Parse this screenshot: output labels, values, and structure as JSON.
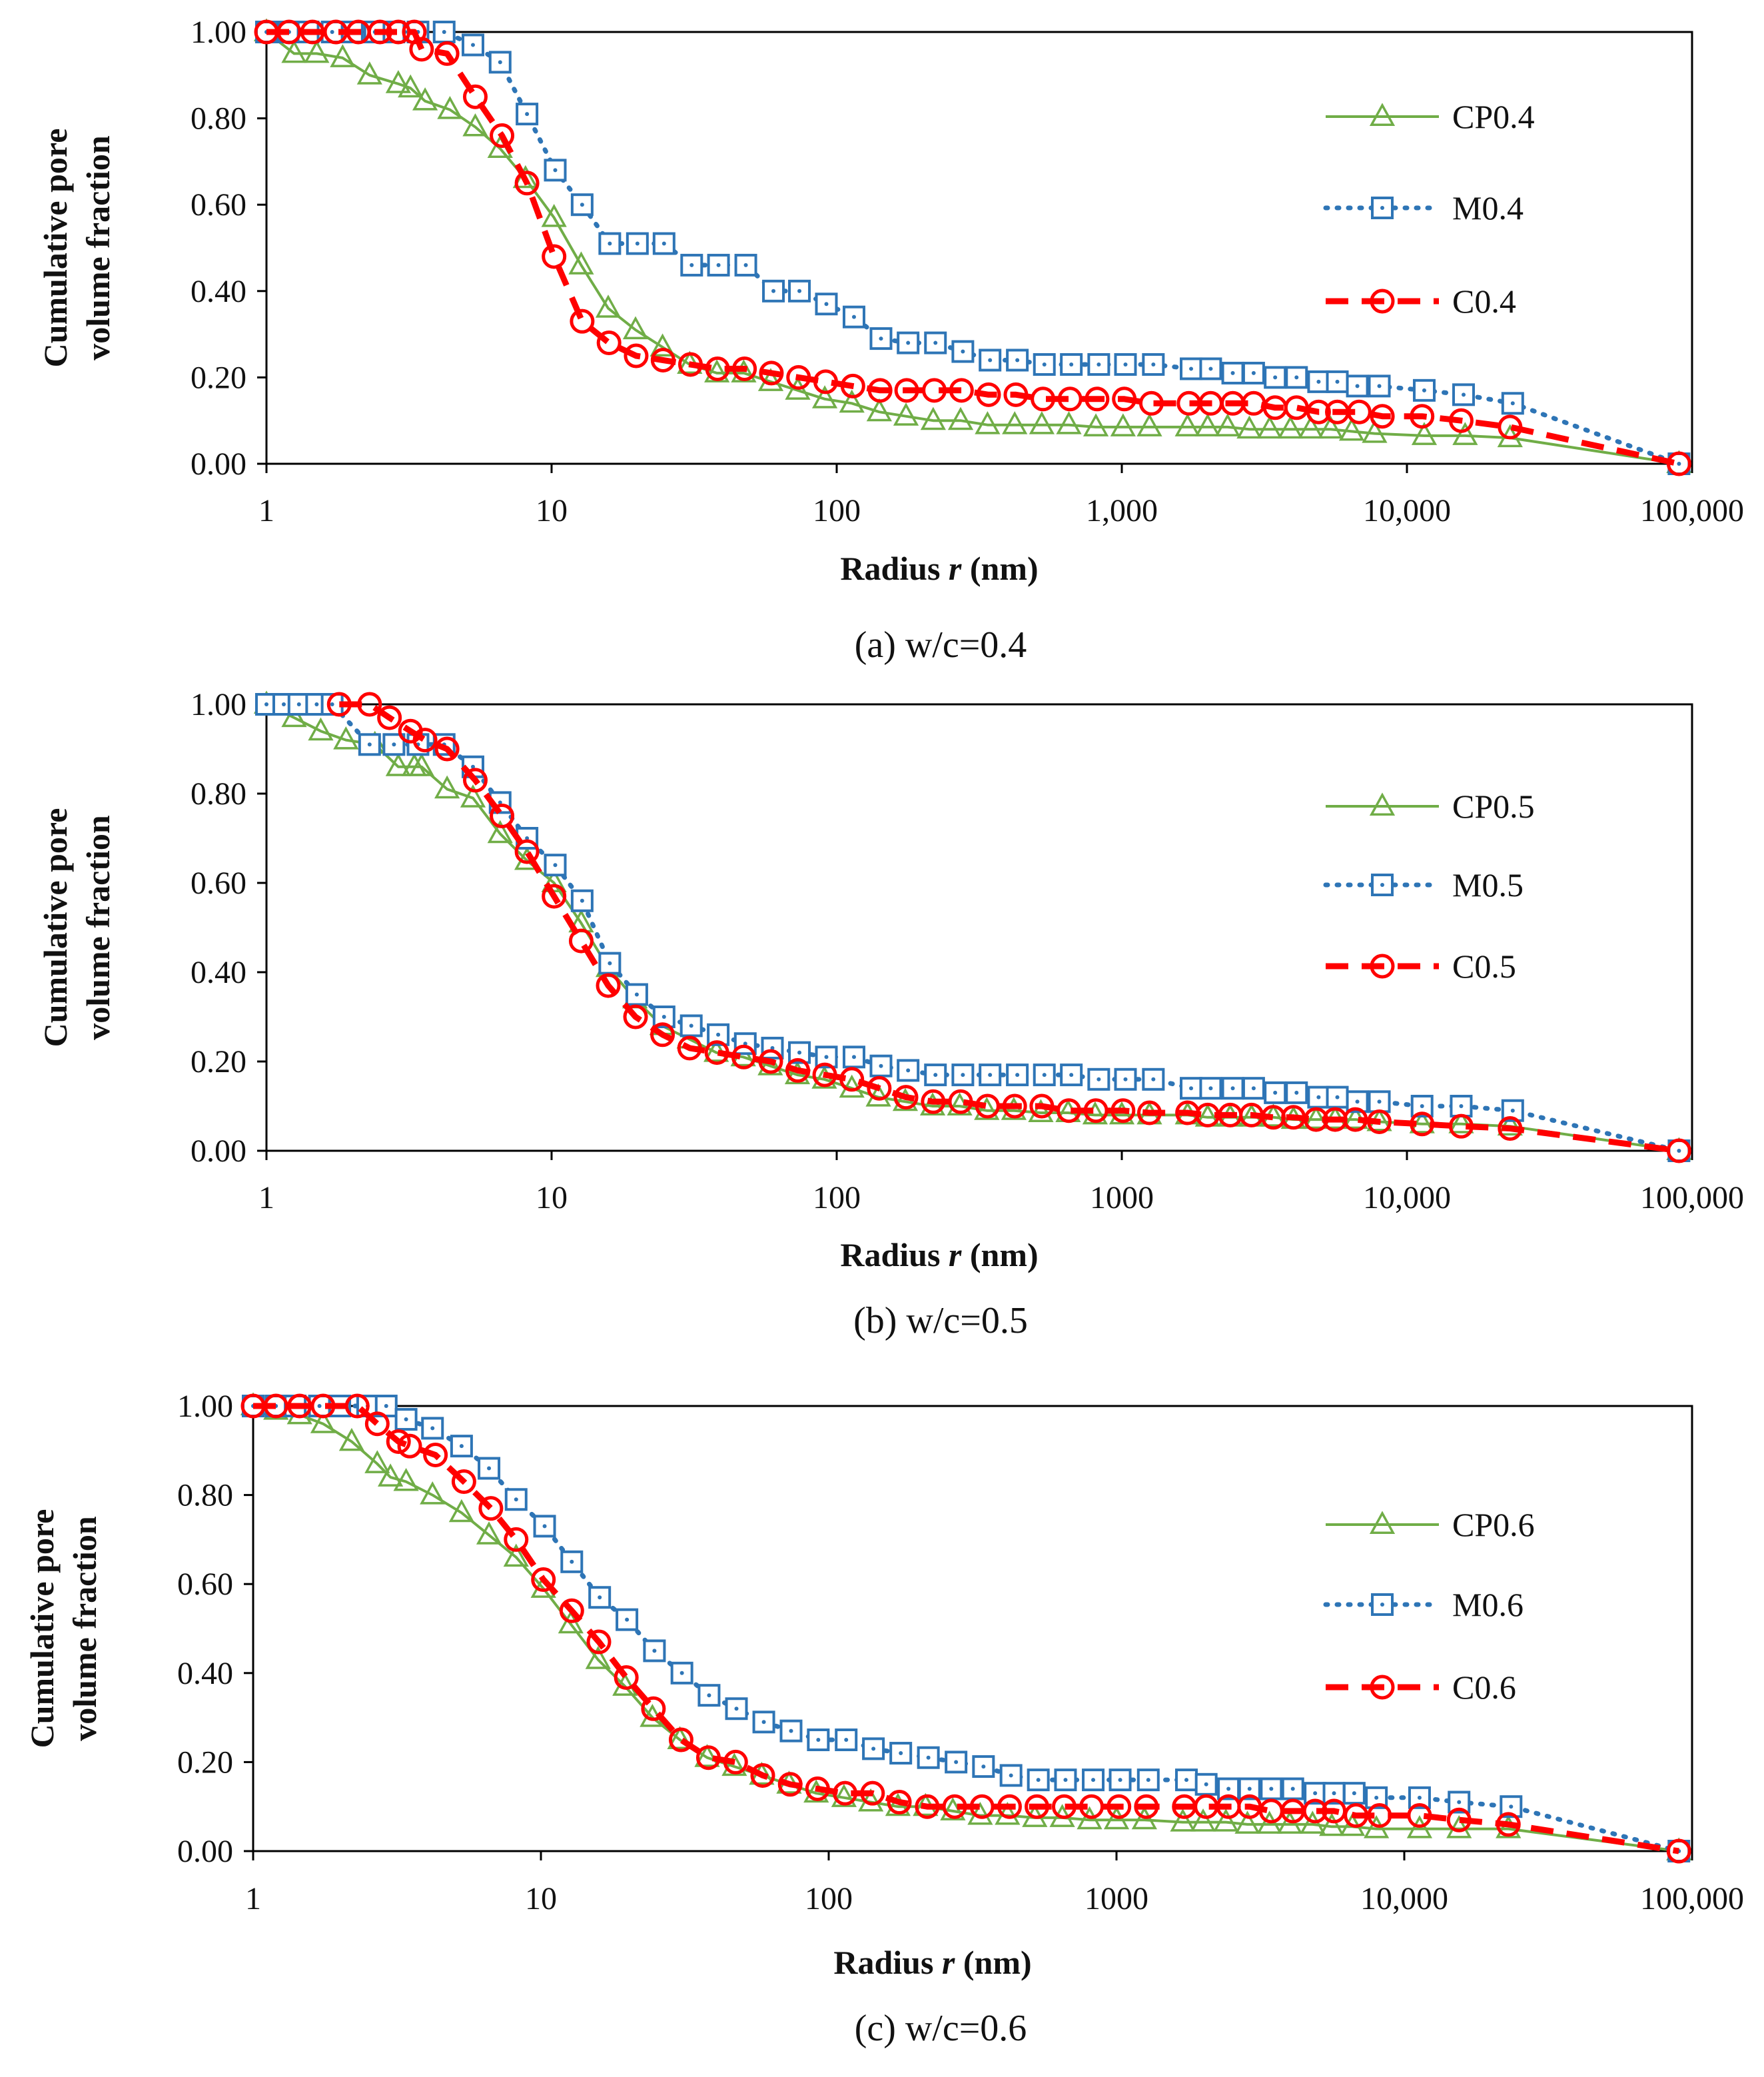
{
  "chart_data": [
    {
      "type": "line",
      "caption": "(a) w/c=0.4",
      "xlabel": "Radius",
      "xlabel_var": "r",
      "xlabel_unit": "(nm)",
      "ylabel_line1": "Cumulative pore",
      "ylabel_line2": "volume fraction",
      "xscale": "log",
      "xlim": [
        1,
        100000
      ],
      "ylim": [
        0,
        1
      ],
      "yticks": [
        "0.00",
        "0.20",
        "0.40",
        "0.60",
        "0.80",
        "1.00"
      ],
      "xticks": [
        "1",
        "10",
        "100",
        "1,000",
        "10,000",
        "100,000"
      ],
      "legend_position": "right",
      "series": [
        {
          "name": "CP0.4",
          "style": "CP",
          "x": [
            1.0,
            1.25,
            1.5,
            1.85,
            2.3,
            2.9,
            3.2,
            3.6,
            4.4,
            5.4,
            6.6,
            8.1,
            10.2,
            12.7,
            15.8,
            19.7,
            24.5,
            30.5,
            38.0,
            47.2,
            58.7,
            73.0,
            90.8,
            113,
            141,
            175,
            218,
            272,
            338,
            421,
            524,
            652,
            811,
            1010,
            1250,
            1700,
            2000,
            2350,
            2800,
            3300,
            3900,
            4600,
            5400,
            6400,
            7700,
            11500,
            16000,
            23000,
            90000
          ],
          "y": [
            1.0,
            0.95,
            0.95,
            0.94,
            0.9,
            0.88,
            0.87,
            0.84,
            0.82,
            0.78,
            0.73,
            0.66,
            0.57,
            0.46,
            0.36,
            0.31,
            0.27,
            0.23,
            0.21,
            0.21,
            0.19,
            0.17,
            0.15,
            0.14,
            0.12,
            0.11,
            0.1,
            0.1,
            0.09,
            0.09,
            0.09,
            0.09,
            0.085,
            0.085,
            0.085,
            0.085,
            0.085,
            0.085,
            0.08,
            0.08,
            0.08,
            0.08,
            0.08,
            0.075,
            0.07,
            0.065,
            0.065,
            0.06,
            0.0
          ]
        },
        {
          "name": "M0.4",
          "style": "M",
          "x": [
            1.0,
            1.2,
            1.4,
            1.7,
            2.0,
            2.4,
            2.8,
            3.4,
            4.2,
            5.3,
            6.6,
            8.2,
            10.3,
            12.8,
            16.0,
            20.0,
            24.8,
            31.0,
            38.5,
            48.0,
            60.0,
            74.0,
            92.0,
            115,
            143,
            178,
            222,
            277,
            345,
            430,
            535,
            665,
            830,
            1030,
            1290,
            1750,
            2050,
            2450,
            2900,
            3450,
            4100,
            4900,
            5700,
            6700,
            8000,
            11500,
            15800,
            23500,
            90000
          ],
          "y": [
            1.0,
            1.0,
            1.0,
            1.0,
            1.0,
            1.0,
            1.0,
            1.0,
            1.0,
            0.97,
            0.93,
            0.81,
            0.68,
            0.6,
            0.51,
            0.51,
            0.51,
            0.46,
            0.46,
            0.46,
            0.4,
            0.4,
            0.37,
            0.34,
            0.29,
            0.28,
            0.28,
            0.26,
            0.24,
            0.24,
            0.23,
            0.23,
            0.23,
            0.23,
            0.23,
            0.22,
            0.22,
            0.21,
            0.21,
            0.2,
            0.2,
            0.19,
            0.19,
            0.18,
            0.18,
            0.17,
            0.16,
            0.14,
            0.0
          ]
        },
        {
          "name": "C0.4",
          "style": "C",
          "x": [
            1.0,
            1.2,
            1.45,
            1.75,
            2.1,
            2.5,
            2.9,
            3.3,
            3.5,
            4.3,
            5.4,
            6.7,
            8.2,
            10.2,
            12.8,
            15.9,
            19.8,
            24.6,
            30.7,
            38.2,
            47.5,
            59.0,
            73.5,
            91.5,
            114,
            142,
            176,
            220,
            274,
            341,
            425,
            529,
            658,
            819,
            1020,
            1270,
            1720,
            2050,
            2450,
            2900,
            3450,
            4100,
            4900,
            5700,
            6800,
            8200,
            11300,
            15500,
            23000,
            90000
          ],
          "y": [
            1.0,
            1.0,
            1.0,
            1.0,
            1.0,
            1.0,
            1.0,
            1.0,
            0.96,
            0.95,
            0.85,
            0.76,
            0.65,
            0.48,
            0.33,
            0.28,
            0.25,
            0.24,
            0.23,
            0.22,
            0.22,
            0.21,
            0.2,
            0.19,
            0.18,
            0.17,
            0.17,
            0.17,
            0.17,
            0.16,
            0.16,
            0.15,
            0.15,
            0.15,
            0.15,
            0.14,
            0.14,
            0.14,
            0.14,
            0.14,
            0.13,
            0.13,
            0.12,
            0.12,
            0.12,
            0.11,
            0.11,
            0.1,
            0.085,
            0.0
          ]
        }
      ]
    },
    {
      "type": "line",
      "caption": "(b) w/c=0.5",
      "xlabel": "Radius",
      "xlabel_var": "r",
      "xlabel_unit": "(nm)",
      "ylabel_line1": "Cumulative pore",
      "ylabel_line2": "volume fraction",
      "xscale": "log",
      "xlim": [
        1,
        100000
      ],
      "ylim": [
        0,
        1
      ],
      "yticks": [
        "0.00",
        "0.20",
        "0.40",
        "0.60",
        "0.80",
        "1.00"
      ],
      "xticks": [
        "1",
        "10",
        "100",
        "1000",
        "10,000",
        "100,000"
      ],
      "legend_position": "right",
      "series": [
        {
          "name": "CP0.5",
          "style": "CP",
          "x": [
            1.0,
            1.25,
            1.55,
            1.9,
            2.4,
            2.9,
            3.3,
            3.5,
            4.3,
            5.3,
            6.6,
            8.2,
            10.2,
            12.7,
            15.8,
            19.6,
            24.4,
            30.4,
            37.8,
            47.0,
            58.5,
            72.8,
            90.5,
            113,
            140,
            174,
            217,
            270,
            336,
            418,
            520,
            648,
            806,
            1000,
            1250,
            1700,
            2000,
            2400,
            2850,
            3400,
            4000,
            4800,
            5600,
            6600,
            8000,
            11300,
            15500,
            23000,
            90000
          ],
          "y": [
            1.0,
            0.97,
            0.94,
            0.92,
            0.91,
            0.86,
            0.86,
            0.86,
            0.81,
            0.79,
            0.71,
            0.65,
            0.6,
            0.51,
            0.41,
            0.34,
            0.28,
            0.25,
            0.22,
            0.21,
            0.19,
            0.17,
            0.16,
            0.14,
            0.12,
            0.11,
            0.1,
            0.1,
            0.09,
            0.09,
            0.085,
            0.085,
            0.08,
            0.08,
            0.08,
            0.08,
            0.075,
            0.075,
            0.075,
            0.075,
            0.07,
            0.07,
            0.07,
            0.07,
            0.065,
            0.06,
            0.06,
            0.055,
            0.0
          ]
        },
        {
          "name": "M0.5",
          "style": "M",
          "x": [
            1.0,
            1.15,
            1.3,
            1.5,
            1.7,
            2.3,
            2.8,
            3.4,
            4.2,
            5.3,
            6.6,
            8.2,
            10.3,
            12.8,
            16.0,
            19.9,
            24.8,
            30.9,
            38.4,
            47.8,
            59.5,
            74.0,
            92.0,
            115,
            143,
            178,
            222,
            277,
            345,
            430,
            535,
            665,
            830,
            1030,
            1290,
            1750,
            2050,
            2450,
            2900,
            3450,
            4100,
            4900,
            5700,
            6700,
            8000,
            11300,
            15500,
            23500,
            90000
          ],
          "y": [
            1.0,
            1.0,
            1.0,
            1.0,
            1.0,
            0.91,
            0.91,
            0.91,
            0.91,
            0.86,
            0.78,
            0.7,
            0.64,
            0.56,
            0.42,
            0.35,
            0.3,
            0.28,
            0.26,
            0.24,
            0.23,
            0.22,
            0.21,
            0.21,
            0.19,
            0.18,
            0.17,
            0.17,
            0.17,
            0.17,
            0.17,
            0.17,
            0.16,
            0.16,
            0.16,
            0.14,
            0.14,
            0.14,
            0.14,
            0.13,
            0.13,
            0.12,
            0.12,
            0.11,
            0.11,
            0.1,
            0.1,
            0.09,
            0.0
          ]
        },
        {
          "name": "C0.5",
          "style": "C",
          "x": [
            1.8,
            2.3,
            2.7,
            3.2,
            3.6,
            4.3,
            5.4,
            6.7,
            8.2,
            10.2,
            12.7,
            15.8,
            19.7,
            24.5,
            30.5,
            38.0,
            47.2,
            58.7,
            73.0,
            90.8,
            113,
            141,
            175,
            218,
            272,
            338,
            421,
            524,
            652,
            811,
            1010,
            1250,
            1700,
            2000,
            2400,
            2850,
            3400,
            4000,
            4800,
            5600,
            6600,
            8000,
            11300,
            15500,
            23000,
            90000
          ],
          "y": [
            1.0,
            1.0,
            0.97,
            0.94,
            0.92,
            0.9,
            0.83,
            0.75,
            0.67,
            0.57,
            0.47,
            0.37,
            0.3,
            0.26,
            0.23,
            0.22,
            0.21,
            0.2,
            0.18,
            0.17,
            0.16,
            0.14,
            0.12,
            0.11,
            0.11,
            0.1,
            0.1,
            0.1,
            0.09,
            0.09,
            0.09,
            0.085,
            0.085,
            0.08,
            0.08,
            0.08,
            0.075,
            0.075,
            0.07,
            0.07,
            0.07,
            0.065,
            0.06,
            0.055,
            0.05,
            0.0
          ]
        }
      ]
    },
    {
      "type": "line",
      "caption": "(c) w/c=0.6",
      "xlabel": "Radius",
      "xlabel_var": "r",
      "xlabel_unit": "(nm)",
      "ylabel_line1": "Cumulative pore",
      "ylabel_line2": "volume fraction",
      "xscale": "log",
      "xlim": [
        1,
        100000
      ],
      "ylim": [
        0,
        1
      ],
      "yticks": [
        "0.00",
        "0.20",
        "0.40",
        "0.60",
        "0.80",
        "1.00"
      ],
      "xticks": [
        "1",
        "10",
        "100",
        "1000",
        "10,000",
        "100,000"
      ],
      "legend_position": "right",
      "series": [
        {
          "name": "CP0.6",
          "style": "CP",
          "x": [
            1.0,
            1.2,
            1.45,
            1.75,
            2.2,
            2.7,
            3.0,
            3.4,
            4.2,
            5.3,
            6.6,
            8.2,
            10.2,
            12.7,
            15.8,
            19.6,
            24.4,
            30.4,
            37.8,
            47.0,
            58.5,
            72.8,
            90.5,
            113,
            140,
            174,
            217,
            270,
            336,
            418,
            520,
            648,
            806,
            1000,
            1250,
            1700,
            2000,
            2400,
            2850,
            3400,
            4000,
            4800,
            5600,
            6600,
            8000,
            11300,
            15500,
            23000,
            90000
          ],
          "y": [
            1.0,
            0.99,
            0.98,
            0.96,
            0.92,
            0.87,
            0.84,
            0.83,
            0.8,
            0.76,
            0.71,
            0.66,
            0.59,
            0.51,
            0.43,
            0.37,
            0.3,
            0.25,
            0.21,
            0.19,
            0.17,
            0.15,
            0.13,
            0.12,
            0.11,
            0.1,
            0.1,
            0.09,
            0.08,
            0.08,
            0.075,
            0.075,
            0.07,
            0.07,
            0.07,
            0.065,
            0.065,
            0.065,
            0.06,
            0.06,
            0.06,
            0.06,
            0.055,
            0.055,
            0.05,
            0.05,
            0.05,
            0.05,
            0.0
          ]
        },
        {
          "name": "M0.6",
          "style": "M",
          "x": [
            1.0,
            1.2,
            1.4,
            1.7,
            2.0,
            2.5,
            2.9,
            3.4,
            4.2,
            5.3,
            6.6,
            8.2,
            10.3,
            12.8,
            16.0,
            19.9,
            24.8,
            30.9,
            38.4,
            47.8,
            59.5,
            74.0,
            92.0,
            115,
            143,
            178,
            222,
            277,
            345,
            430,
            535,
            665,
            830,
            1030,
            1290,
            1750,
            2050,
            2450,
            2900,
            3450,
            4100,
            4900,
            5700,
            6700,
            8000,
            11300,
            15500,
            23500,
            90000
          ],
          "y": [
            1.0,
            1.0,
            1.0,
            1.0,
            1.0,
            1.0,
            1.0,
            0.97,
            0.95,
            0.91,
            0.86,
            0.79,
            0.73,
            0.65,
            0.57,
            0.52,
            0.45,
            0.4,
            0.35,
            0.32,
            0.29,
            0.27,
            0.25,
            0.25,
            0.23,
            0.22,
            0.21,
            0.2,
            0.19,
            0.17,
            0.16,
            0.16,
            0.16,
            0.16,
            0.16,
            0.16,
            0.15,
            0.14,
            0.14,
            0.14,
            0.14,
            0.13,
            0.13,
            0.13,
            0.12,
            0.12,
            0.11,
            0.1,
            0.0
          ]
        },
        {
          "name": "C0.6",
          "style": "C",
          "x": [
            1.0,
            1.2,
            1.45,
            1.75,
            2.3,
            2.7,
            3.2,
            3.5,
            4.3,
            5.4,
            6.7,
            8.2,
            10.2,
            12.8,
            15.9,
            19.8,
            24.6,
            30.7,
            38.2,
            47.5,
            59.0,
            73.5,
            91.5,
            114,
            142,
            176,
            220,
            274,
            341,
            425,
            529,
            658,
            819,
            1020,
            1270,
            1720,
            2050,
            2450,
            2900,
            3450,
            4100,
            4900,
            5700,
            6800,
            8200,
            11300,
            15500,
            23000,
            90000
          ],
          "y": [
            1.0,
            1.0,
            1.0,
            1.0,
            1.0,
            0.96,
            0.92,
            0.91,
            0.89,
            0.83,
            0.77,
            0.7,
            0.61,
            0.54,
            0.47,
            0.39,
            0.32,
            0.25,
            0.21,
            0.2,
            0.17,
            0.15,
            0.14,
            0.13,
            0.13,
            0.11,
            0.1,
            0.1,
            0.1,
            0.1,
            0.1,
            0.1,
            0.1,
            0.1,
            0.1,
            0.1,
            0.1,
            0.1,
            0.1,
            0.09,
            0.09,
            0.09,
            0.09,
            0.08,
            0.08,
            0.08,
            0.07,
            0.06,
            0.0
          ]
        }
      ]
    }
  ],
  "colors": {
    "CP": "#70ad47",
    "M": "#2e75b6",
    "C": "#ff0000",
    "axis": "#000000",
    "text": "#111111"
  }
}
